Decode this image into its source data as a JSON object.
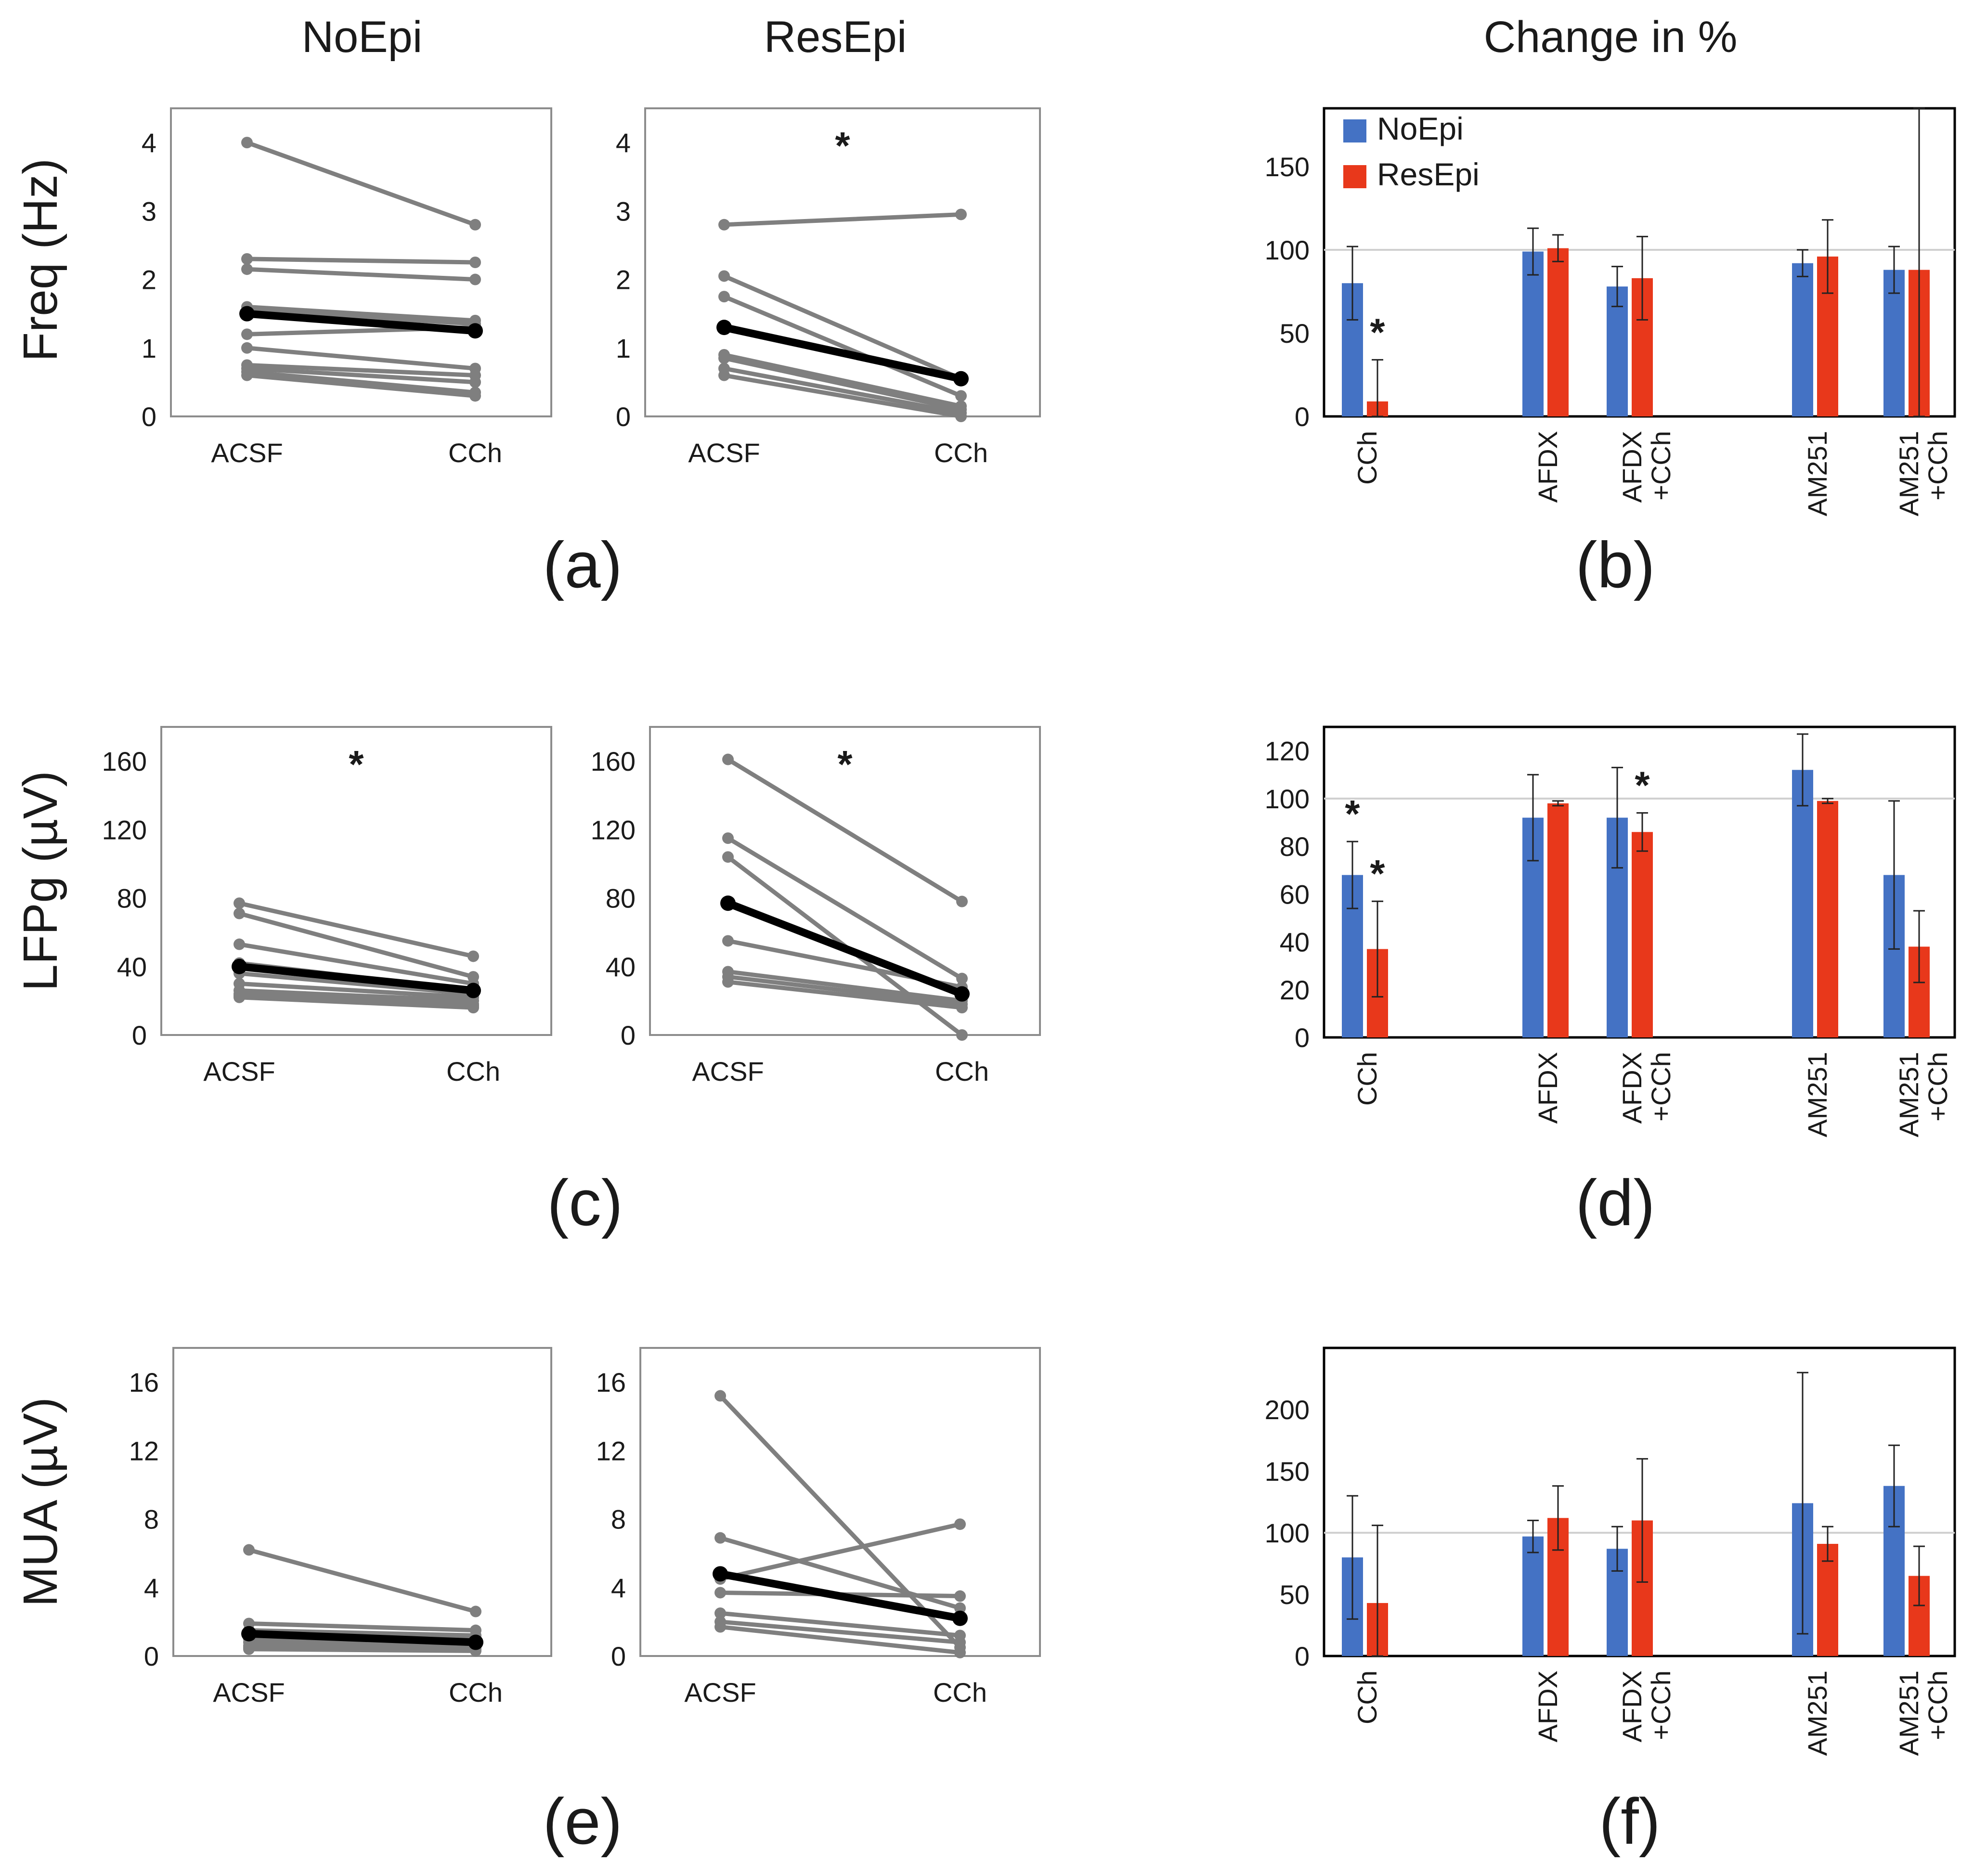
{
  "column_titles": [
    "NoEpi",
    "ResEpi",
    "Change in %"
  ],
  "row_labels": [
    "Freq (Hz)",
    "LFPg (µV)",
    "MUA (µV)"
  ],
  "panel_labels": [
    "(a)",
    "(b)",
    "(c)",
    "(d)",
    "(e)",
    "(f)"
  ],
  "colors": {
    "noepi": "#4472c4",
    "resepi": "#e8381b",
    "individual": "#7f7f7f",
    "mean": "#000000",
    "frame": "#8c8c8c",
    "refline": "#d0d0d0"
  },
  "chart_data": [
    {
      "id": "a-noepi",
      "type": "line",
      "panel": "(a)",
      "title": "NoEpi",
      "ylabel": "Freq (Hz)",
      "categories": [
        "ACSF",
        "CCh"
      ],
      "ylim": [
        0,
        4.5
      ],
      "yticks": [
        0,
        1,
        2,
        3,
        4
      ],
      "series": [
        {
          "name": "individual",
          "values": [
            4.0,
            2.8
          ]
        },
        {
          "name": "individual",
          "values": [
            2.3,
            2.25
          ]
        },
        {
          "name": "individual",
          "values": [
            2.15,
            2.0
          ]
        },
        {
          "name": "individual",
          "values": [
            1.6,
            1.4
          ]
        },
        {
          "name": "individual",
          "values": [
            1.55,
            1.35
          ]
        },
        {
          "name": "individual",
          "values": [
            1.2,
            1.3
          ]
        },
        {
          "name": "individual",
          "values": [
            1.0,
            0.7
          ]
        },
        {
          "name": "individual",
          "values": [
            0.75,
            0.6
          ]
        },
        {
          "name": "individual",
          "values": [
            0.7,
            0.5
          ]
        },
        {
          "name": "individual",
          "values": [
            0.65,
            0.35
          ]
        },
        {
          "name": "individual",
          "values": [
            0.6,
            0.3
          ]
        },
        {
          "name": "mean",
          "values": [
            1.5,
            1.25
          ]
        }
      ],
      "annotation": ""
    },
    {
      "id": "a-resepi",
      "type": "line",
      "panel": "(a)",
      "title": "ResEpi",
      "categories": [
        "ACSF",
        "CCh"
      ],
      "ylim": [
        0,
        4.5
      ],
      "yticks": [
        0,
        1,
        2,
        3,
        4
      ],
      "series": [
        {
          "name": "individual",
          "values": [
            2.8,
            2.95
          ]
        },
        {
          "name": "individual",
          "values": [
            2.05,
            0.55
          ]
        },
        {
          "name": "individual",
          "values": [
            1.75,
            0.3
          ]
        },
        {
          "name": "individual",
          "values": [
            0.9,
            0.15
          ]
        },
        {
          "name": "individual",
          "values": [
            0.85,
            0.1
          ]
        },
        {
          "name": "individual",
          "values": [
            0.7,
            0.05
          ]
        },
        {
          "name": "individual",
          "values": [
            0.6,
            0.0
          ]
        },
        {
          "name": "mean",
          "values": [
            1.3,
            0.55
          ]
        }
      ],
      "annotation": "*"
    },
    {
      "id": "b",
      "type": "bar",
      "panel": "(b)",
      "categories": [
        "CCh",
        "AFDX",
        "AFDX +CCh",
        "AM251",
        "AM251 +CCh"
      ],
      "ylim": [
        0,
        185
      ],
      "yticks": [
        0,
        50,
        100,
        150
      ],
      "reference_line": 100,
      "legend": [
        "NoEpi",
        "ResEpi"
      ],
      "legend_position": "top-left",
      "series": [
        {
          "name": "NoEpi",
          "values": [
            80,
            99,
            78,
            92,
            88
          ],
          "errors": [
            22,
            14,
            12,
            8,
            14
          ]
        },
        {
          "name": "ResEpi",
          "values": [
            9,
            101,
            83,
            96,
            88
          ],
          "errors": [
            25,
            8,
            25,
            22,
            100
          ]
        }
      ],
      "annotations": [
        {
          "category": "CCh",
          "series": "ResEpi",
          "text": "*"
        }
      ]
    },
    {
      "id": "c-noepi",
      "type": "line",
      "panel": "(c)",
      "ylabel": "LFPg (µV)",
      "categories": [
        "ACSF",
        "CCh"
      ],
      "ylim": [
        0,
        180
      ],
      "yticks": [
        0,
        40,
        80,
        120,
        160
      ],
      "series": [
        {
          "name": "individual",
          "values": [
            77,
            46
          ]
        },
        {
          "name": "individual",
          "values": [
            71,
            34
          ]
        },
        {
          "name": "individual",
          "values": [
            53,
            30
          ]
        },
        {
          "name": "individual",
          "values": [
            42,
            26
          ]
        },
        {
          "name": "individual",
          "values": [
            36,
            24
          ]
        },
        {
          "name": "individual",
          "values": [
            30,
            22
          ]
        },
        {
          "name": "individual",
          "values": [
            26,
            20
          ]
        },
        {
          "name": "individual",
          "values": [
            24,
            18
          ]
        },
        {
          "name": "individual",
          "values": [
            23,
            17
          ]
        },
        {
          "name": "individual",
          "values": [
            22,
            16
          ]
        },
        {
          "name": "mean",
          "values": [
            40,
            26
          ]
        }
      ],
      "annotation": "*"
    },
    {
      "id": "c-resepi",
      "type": "line",
      "panel": "(c)",
      "categories": [
        "ACSF",
        "CCh"
      ],
      "ylim": [
        0,
        180
      ],
      "yticks": [
        0,
        40,
        80,
        120,
        160
      ],
      "series": [
        {
          "name": "individual",
          "values": [
            161,
            78
          ]
        },
        {
          "name": "individual",
          "values": [
            115,
            33
          ]
        },
        {
          "name": "individual",
          "values": [
            104,
            0
          ]
        },
        {
          "name": "individual",
          "values": [
            55,
            28
          ]
        },
        {
          "name": "individual",
          "values": [
            37,
            20
          ]
        },
        {
          "name": "individual",
          "values": [
            34,
            18
          ]
        },
        {
          "name": "individual",
          "values": [
            31,
            16
          ]
        },
        {
          "name": "mean",
          "values": [
            77,
            24
          ]
        }
      ],
      "annotation": "*"
    },
    {
      "id": "d",
      "type": "bar",
      "panel": "(d)",
      "categories": [
        "CCh",
        "AFDX",
        "AFDX +CCh",
        "AM251",
        "AM251 +CCh"
      ],
      "ylim": [
        0,
        130
      ],
      "yticks": [
        0,
        20,
        40,
        60,
        80,
        100,
        120
      ],
      "reference_line": 100,
      "series": [
        {
          "name": "NoEpi",
          "values": [
            68,
            92,
            92,
            112,
            68
          ],
          "errors": [
            14,
            18,
            21,
            15,
            31
          ]
        },
        {
          "name": "ResEpi",
          "values": [
            37,
            98,
            86,
            99,
            38
          ],
          "errors": [
            20,
            1,
            8,
            1,
            15
          ]
        }
      ],
      "annotations": [
        {
          "category": "CCh",
          "series": "NoEpi",
          "text": "*"
        },
        {
          "category": "CCh",
          "series": "ResEpi",
          "text": "*"
        },
        {
          "category": "AFDX +CCh",
          "series": "ResEpi",
          "text": "*"
        }
      ]
    },
    {
      "id": "e-noepi",
      "type": "line",
      "panel": "(e)",
      "ylabel": "MUA (µV)",
      "categories": [
        "ACSF",
        "CCh"
      ],
      "ylim": [
        0,
        18
      ],
      "yticks": [
        0,
        4,
        8,
        12,
        16
      ],
      "series": [
        {
          "name": "individual",
          "values": [
            6.2,
            2.6
          ]
        },
        {
          "name": "individual",
          "values": [
            1.9,
            1.5
          ]
        },
        {
          "name": "individual",
          "values": [
            1.5,
            1.2
          ]
        },
        {
          "name": "individual",
          "values": [
            1.2,
            1.0
          ]
        },
        {
          "name": "individual",
          "values": [
            1.0,
            0.8
          ]
        },
        {
          "name": "individual",
          "values": [
            0.8,
            0.6
          ]
        },
        {
          "name": "individual",
          "values": [
            0.6,
            0.5
          ]
        },
        {
          "name": "individual",
          "values": [
            0.5,
            0.4
          ]
        },
        {
          "name": "individual",
          "values": [
            0.4,
            0.3
          ]
        },
        {
          "name": "mean",
          "values": [
            1.3,
            0.8
          ]
        }
      ],
      "annotation": ""
    },
    {
      "id": "e-resepi",
      "type": "line",
      "panel": "(e)",
      "categories": [
        "ACSF",
        "CCh"
      ],
      "ylim": [
        0,
        18
      ],
      "yticks": [
        0,
        4,
        8,
        12,
        16
      ],
      "series": [
        {
          "name": "individual",
          "values": [
            15.2,
            0.5
          ]
        },
        {
          "name": "individual",
          "values": [
            6.9,
            2.8
          ]
        },
        {
          "name": "individual",
          "values": [
            4.5,
            7.7
          ]
        },
        {
          "name": "individual",
          "values": [
            3.7,
            3.5
          ]
        },
        {
          "name": "individual",
          "values": [
            2.5,
            1.2
          ]
        },
        {
          "name": "individual",
          "values": [
            2.0,
            0.8
          ]
        },
        {
          "name": "individual",
          "values": [
            1.7,
            0.2
          ]
        },
        {
          "name": "mean",
          "values": [
            4.8,
            2.2
          ]
        }
      ],
      "annotation": ""
    },
    {
      "id": "f",
      "type": "bar",
      "panel": "(f)",
      "categories": [
        "CCh",
        "AFDX",
        "AFDX +CCh",
        "AM251",
        "AM251 +CCh"
      ],
      "ylim": [
        0,
        250
      ],
      "yticks": [
        0,
        50,
        100,
        150,
        200
      ],
      "reference_line": 100,
      "series": [
        {
          "name": "NoEpi",
          "values": [
            80,
            97,
            87,
            124,
            138
          ],
          "errors": [
            50,
            13,
            18,
            106,
            33
          ]
        },
        {
          "name": "ResEpi",
          "values": [
            43,
            112,
            110,
            91,
            65
          ],
          "errors": [
            63,
            26,
            50,
            14,
            24
          ]
        }
      ],
      "annotations": []
    }
  ]
}
